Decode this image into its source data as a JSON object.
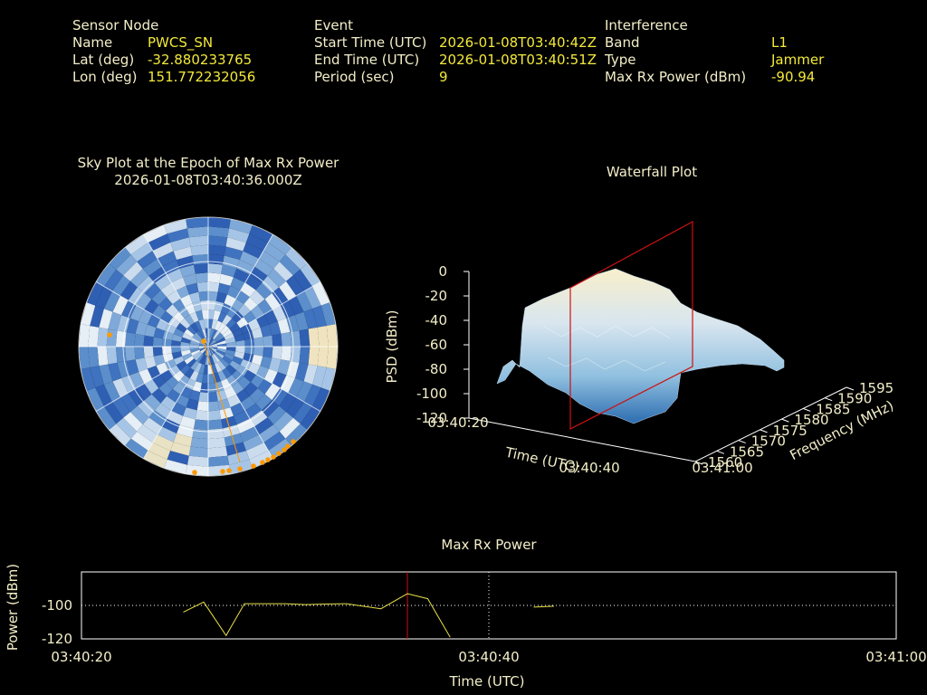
{
  "header": {
    "sensor": {
      "heading": "Sensor Node",
      "name_label": "Name",
      "name_value": "PWCS_SN",
      "lat_label": "Lat (deg)",
      "lat_value": "-32.880233765",
      "lon_label": "Lon (deg)",
      "lon_value": "151.772232056"
    },
    "event": {
      "heading": "Event",
      "start_label": "Start Time (UTC)",
      "start_value": "2026-01-08T03:40:42Z",
      "end_label": "End Time (UTC)",
      "end_value": "2026-01-08T03:40:51Z",
      "period_label": "Period (sec)",
      "period_value": "9"
    },
    "interference": {
      "heading": "Interference",
      "band_label": "Band",
      "band_value": "L1",
      "type_label": "Type",
      "type_value": "Jammer",
      "maxrx_label": "Max Rx Power (dBm)",
      "maxrx_value": "-90.94"
    }
  },
  "colors": {
    "text": "#f3eec8",
    "value": "#f2e93a",
    "marker": "#ff9900",
    "highlight": "#cc1111",
    "trace": "#e8e04a",
    "grid": "#ffffff"
  },
  "chart_data": [
    {
      "type": "polar-heatmap",
      "title": "Sky Plot at the Epoch of Max Rx Power",
      "subtitle": "2026-01-08T03:40:36.000Z"
    },
    {
      "type": "surface-3d",
      "title": "Waterfall Plot",
      "xlabel": "Time (UTC)",
      "xticks": [
        "03:40:20",
        "03:40:40",
        "03:41:00"
      ],
      "ylabel": "Frequency (MHz)",
      "yticks": [
        "1560",
        "1565",
        "1570",
        "1575",
        "1580",
        "1585",
        "1590",
        "1595"
      ],
      "zlabel": "PSD (dBm)",
      "zticks": [
        "0",
        "-20",
        "-40",
        "-60",
        "-80",
        "-100",
        "-120"
      ],
      "zlim": [
        -120,
        0
      ],
      "highlight_time": "03:40:36"
    },
    {
      "type": "line",
      "title": "Max Rx Power",
      "xlabel": "Time (UTC)",
      "ylabel": "Power (dBm)",
      "xticks": [
        "03:40:20",
        "03:40:40",
        "03:41:00"
      ],
      "yticks": [
        "-100",
        "-120"
      ],
      "xlim_seconds": [
        0,
        40
      ],
      "ylim": [
        -120,
        -80
      ],
      "highlight_x": 16,
      "segments": [
        [
          [
            5,
            -104
          ],
          [
            6,
            -98
          ],
          [
            7.1,
            -118
          ],
          [
            8,
            -99
          ],
          [
            9,
            -99
          ],
          [
            10,
            -99
          ],
          [
            11,
            -99.5
          ],
          [
            12,
            -99.2
          ],
          [
            13,
            -99
          ],
          [
            14.7,
            -102
          ],
          [
            16,
            -93
          ],
          [
            17,
            -96
          ],
          [
            18.1,
            -119
          ]
        ],
        [
          [
            22.2,
            -101
          ],
          [
            23.2,
            -100.5
          ]
        ]
      ]
    }
  ]
}
